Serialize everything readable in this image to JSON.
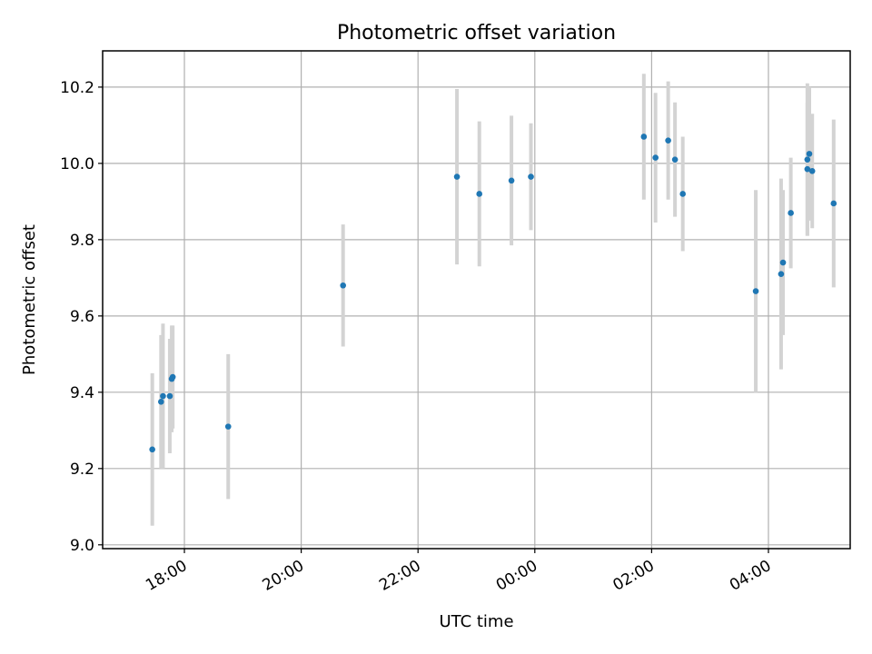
{
  "chart_data": {
    "type": "scatter",
    "title": "Photometric offset variation",
    "xlabel": "UTC time",
    "ylabel": "Photometric offset",
    "xlim_hours": [
      16.6,
      29.4
    ],
    "ylim": [
      8.99,
      10.295
    ],
    "grid": true,
    "x_ticks": [
      {
        "hours": 18,
        "label": "18:00"
      },
      {
        "hours": 20,
        "label": "20:00"
      },
      {
        "hours": 22,
        "label": "22:00"
      },
      {
        "hours": 24,
        "label": "00:00"
      },
      {
        "hours": 26,
        "label": "02:00"
      },
      {
        "hours": 28,
        "label": "04:00"
      }
    ],
    "y_ticks": [
      {
        "value": 9.0,
        "label": "9.0"
      },
      {
        "value": 9.2,
        "label": "9.2"
      },
      {
        "value": 9.4,
        "label": "9.4"
      },
      {
        "value": 9.6,
        "label": "9.6"
      },
      {
        "value": 9.8,
        "label": "9.8"
      },
      {
        "value": 10.0,
        "label": "10.0"
      },
      {
        "value": 10.2,
        "label": "10.2"
      }
    ],
    "colors": {
      "point": "#1f77b4",
      "error_bar": "#d3d3d3"
    },
    "points": [
      {
        "time": "17:27",
        "y": 9.25,
        "err": 0.2
      },
      {
        "time": "17:36",
        "y": 9.375,
        "err": 0.175
      },
      {
        "time": "17:38",
        "y": 9.39,
        "err": 0.19
      },
      {
        "time": "17:45",
        "y": 9.39,
        "err": 0.15
      },
      {
        "time": "17:47",
        "y": 9.435,
        "err": 0.14
      },
      {
        "time": "17:48",
        "y": 9.44,
        "err": 0.135
      },
      {
        "time": "18:45",
        "y": 9.31,
        "err": 0.19
      },
      {
        "time": "20:43",
        "y": 9.68,
        "err": 0.16
      },
      {
        "time": "22:40",
        "y": 9.965,
        "err": 0.23
      },
      {
        "time": "23:03",
        "y": 9.92,
        "err": 0.19
      },
      {
        "time": "23:36",
        "y": 9.955,
        "err": 0.17
      },
      {
        "time": "23:56",
        "y": 9.965,
        "err": 0.14
      },
      {
        "time": "01:52",
        "y": 10.07,
        "err": 0.165
      },
      {
        "time": "02:04",
        "y": 10.015,
        "err": 0.17
      },
      {
        "time": "02:17",
        "y": 10.06,
        "err": 0.155
      },
      {
        "time": "02:24",
        "y": 10.01,
        "err": 0.15
      },
      {
        "time": "02:32",
        "y": 9.92,
        "err": 0.15
      },
      {
        "time": "03:47",
        "y": 9.665,
        "err": 0.265
      },
      {
        "time": "04:13",
        "y": 9.71,
        "err": 0.25
      },
      {
        "time": "04:15",
        "y": 9.74,
        "err": 0.19
      },
      {
        "time": "04:23",
        "y": 9.87,
        "err": 0.145
      },
      {
        "time": "04:40",
        "y": 9.985,
        "err": 0.175
      },
      {
        "time": "04:40",
        "y": 10.01,
        "err": 0.2
      },
      {
        "time": "04:42",
        "y": 10.025,
        "err": 0.175
      },
      {
        "time": "04:45",
        "y": 9.98,
        "err": 0.15
      },
      {
        "time": "05:07",
        "y": 9.895,
        "err": 0.22
      }
    ]
  }
}
